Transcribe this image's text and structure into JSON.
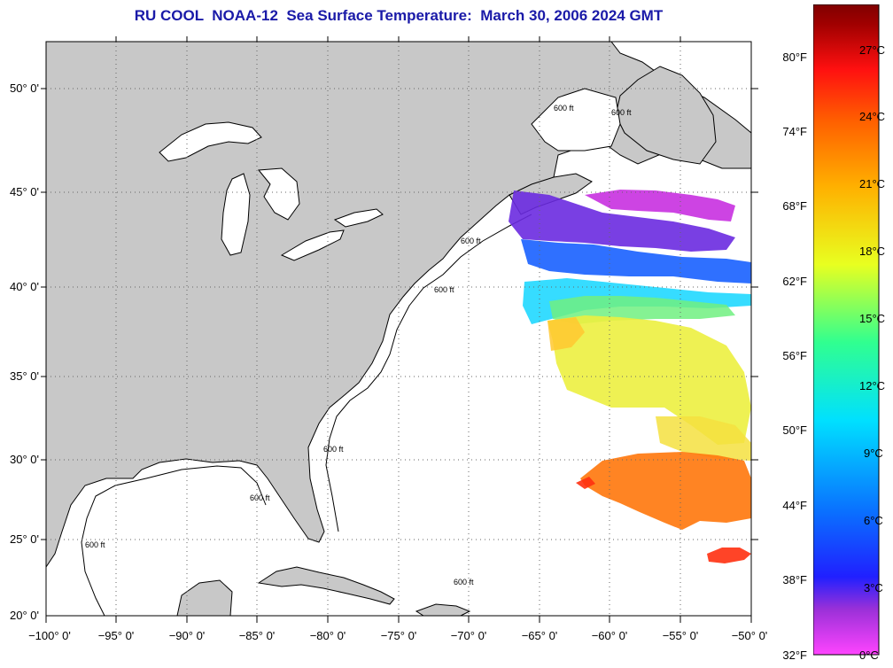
{
  "title": "RU COOL  NOAA-12  Sea Surface Temperature:  March 30, 2006 2024 GMT",
  "map": {
    "lat_labels": [
      "50° 0'",
      "45° 0'",
      "40° 0'",
      "35° 0'",
      "30° 0'",
      "25° 0'",
      "20° 0'"
    ],
    "lon_labels": [
      "−100° 0'",
      "−95° 0'",
      "−90° 0'",
      "−85° 0'",
      "−80° 0'",
      "−75° 0'",
      "−70° 0'",
      "−65° 0'",
      "−60° 0'",
      "−55° 0'",
      "−50° 0'"
    ],
    "contour_labels": [
      "600 ft",
      "600 ft",
      "600 ft",
      "600 ft",
      "600 ft",
      "600 ft",
      "600 ft",
      "600 ft"
    ],
    "land_color": "#c8c8c8",
    "water_color": "#ffffff"
  },
  "colorbar": {
    "fahrenheit_labels": [
      "80°F",
      "74°F",
      "68°F",
      "62°F",
      "56°F",
      "50°F",
      "44°F",
      "38°F",
      "32°F"
    ],
    "celsius_labels": [
      "27°C",
      "24°C",
      "21°C",
      "18°C",
      "15°C",
      "12°C",
      "9°C",
      "6°C",
      "3°C",
      "0°C"
    ],
    "gradient_colors": [
      "#ff44ff",
      "#9a30d8",
      "#2020ff",
      "#0a70ff",
      "#00e0ff",
      "#30ff90",
      "#e8ff20",
      "#ffb000",
      "#ff6000",
      "#ff1010",
      "#a00000",
      "#800000"
    ]
  }
}
